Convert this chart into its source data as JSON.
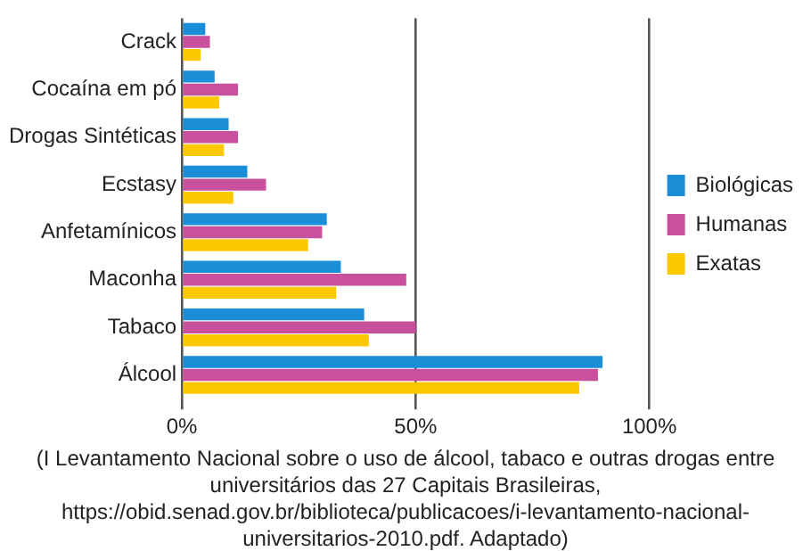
{
  "chart_data": {
    "type": "bar",
    "orientation": "horizontal",
    "categories": [
      "Crack",
      "Cocaína em pó",
      "Drogas Sintéticas",
      "Ecstasy",
      "Anfetamínicos",
      "Maconha",
      "Tabaco",
      "Álcool"
    ],
    "series": [
      {
        "name": "Biológicas",
        "color": "#1a8fd8",
        "values": [
          5,
          7,
          10,
          14,
          31,
          34,
          39,
          90
        ]
      },
      {
        "name": "Humanas",
        "color": "#c9509c",
        "values": [
          6,
          12,
          12,
          18,
          30,
          48,
          50,
          89
        ]
      },
      {
        "name": "Exatas",
        "color": "#fdc800",
        "values": [
          4,
          8,
          9,
          11,
          27,
          33,
          40,
          85
        ]
      }
    ],
    "xlim": [
      0,
      100
    ],
    "xticks": [
      {
        "value": 0,
        "label": "0%"
      },
      {
        "value": 50,
        "label": "50%"
      },
      {
        "value": 100,
        "label": "100%"
      }
    ],
    "grid": "x",
    "legend": "right",
    "annotations": [
      "(I Levantamento Nacional sobre o uso de álcool, tabaco e outras drogas entre universitários das 27 Capitais Brasileiras, https://obid.senad.gov.br/biblioteca/publicacoes/i-levantamento-nacional-universitarios-2010.pdf. Adaptado)"
    ]
  }
}
